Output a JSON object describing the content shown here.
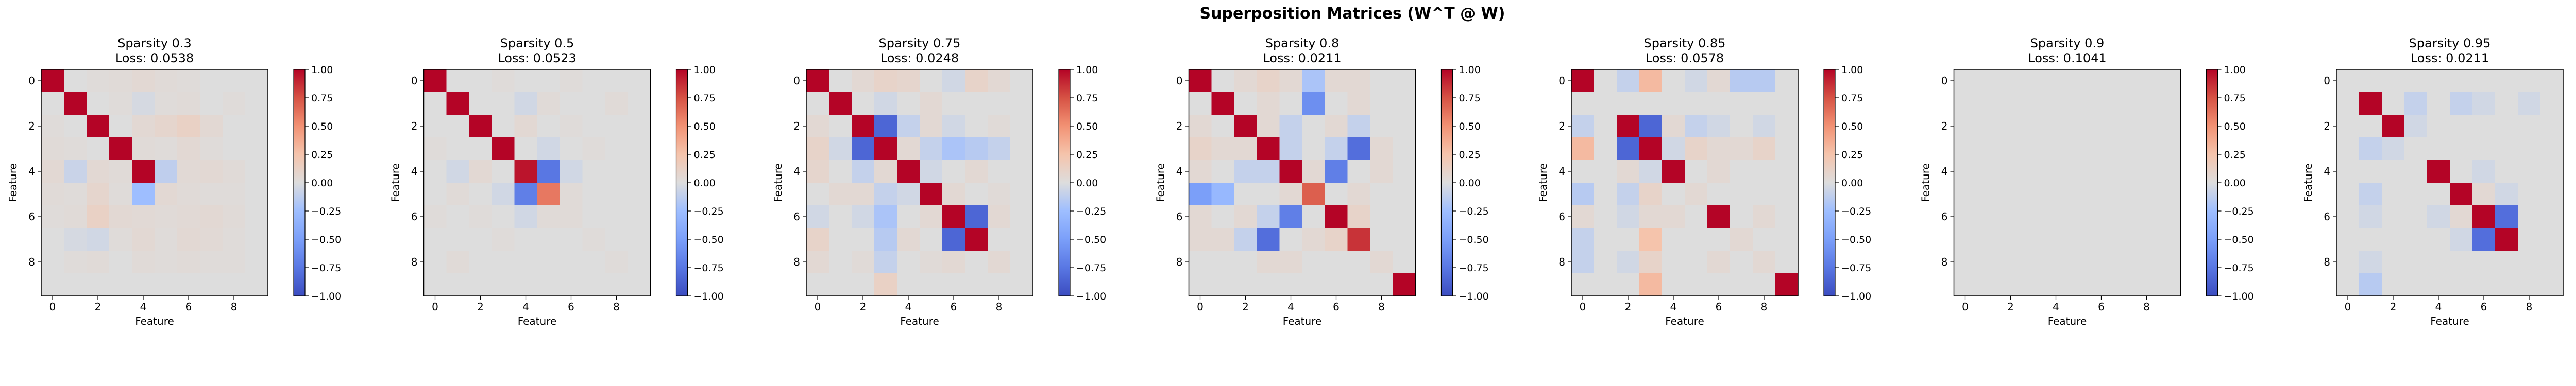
{
  "figure": {
    "title": "Superposition Matrices (W^T @ W)"
  },
  "colormap": {
    "name": "coolwarm",
    "vmin": -1.0,
    "vmax": 1.0,
    "low": "#3b4cc0",
    "mid": "#dddddd",
    "high": "#b40426"
  },
  "chart_data": [
    {
      "type": "heatmap",
      "title": "Sparsity 0.3",
      "subtitle": "Loss: 0.0538",
      "sparsity": 0.3,
      "loss": 0.0538,
      "xlabel": "Feature",
      "ylabel": "Feature",
      "xticks": [
        "0",
        "2",
        "4",
        "6",
        "8"
      ],
      "yticks": [
        "0",
        "2",
        "4",
        "6",
        "8"
      ],
      "colorbar_ticks": [
        "1.00",
        "0.75",
        "0.50",
        "0.25",
        "0.00",
        "−0.25",
        "−0.50",
        "−0.75",
        "−1.00"
      ],
      "matrix": [
        [
          1.0,
          0.0,
          0.02,
          0.03,
          0.05,
          0.03,
          0.02,
          0.0,
          0.0,
          0.0
        ],
        [
          0.0,
          1.0,
          0.0,
          0.02,
          -0.03,
          0.02,
          0.03,
          0.0,
          0.02,
          0.0
        ],
        [
          0.02,
          0.0,
          1.0,
          0.0,
          0.05,
          0.08,
          0.12,
          0.05,
          0.0,
          0.0
        ],
        [
          0.03,
          0.02,
          0.0,
          1.0,
          0.03,
          0.02,
          0.05,
          0.02,
          0.0,
          0.0
        ],
        [
          0.05,
          -0.08,
          0.05,
          0.03,
          1.0,
          -0.12,
          0.04,
          0.05,
          0.03,
          0.0
        ],
        [
          0.03,
          0.02,
          0.08,
          0.02,
          -0.25,
          0.05,
          0.03,
          0.02,
          0.02,
          0.0
        ],
        [
          0.02,
          0.03,
          0.12,
          0.05,
          0.04,
          0.03,
          0.04,
          0.05,
          0.03,
          0.0
        ],
        [
          0.0,
          -0.03,
          -0.05,
          0.02,
          0.05,
          0.02,
          0.05,
          0.04,
          0.02,
          0.0
        ],
        [
          0.0,
          0.02,
          0.03,
          0.0,
          0.03,
          0.02,
          0.03,
          0.02,
          0.02,
          0.0
        ],
        [
          0.0,
          0.0,
          0.0,
          0.0,
          0.0,
          0.0,
          0.0,
          0.0,
          0.0,
          0.0
        ]
      ]
    },
    {
      "type": "heatmap",
      "title": "Sparsity 0.5",
      "subtitle": "Loss: 0.0523",
      "sparsity": 0.5,
      "loss": 0.0523,
      "xlabel": "Feature",
      "ylabel": "Feature",
      "xticks": [
        "0",
        "2",
        "4",
        "6",
        "8"
      ],
      "yticks": [
        "0",
        "2",
        "4",
        "6",
        "8"
      ],
      "colorbar_ticks": [
        "1.00",
        "0.75",
        "0.50",
        "0.25",
        "0.00",
        "−0.25",
        "−0.50",
        "−0.75",
        "−1.00"
      ],
      "matrix": [
        [
          1.0,
          0.0,
          0.0,
          0.02,
          0.0,
          0.0,
          0.02,
          0.0,
          0.0,
          0.0
        ],
        [
          0.0,
          1.0,
          0.0,
          0.0,
          -0.05,
          0.03,
          0.0,
          0.0,
          0.03,
          0.0
        ],
        [
          0.0,
          0.0,
          1.0,
          0.0,
          0.05,
          0.0,
          0.02,
          0.0,
          0.0,
          0.0
        ],
        [
          0.02,
          0.0,
          0.0,
          1.0,
          0.0,
          -0.05,
          0.0,
          0.02,
          0.0,
          0.0
        ],
        [
          0.0,
          -0.05,
          0.05,
          0.0,
          0.95,
          -0.75,
          -0.05,
          0.0,
          0.0,
          0.0
        ],
        [
          0.0,
          0.03,
          0.0,
          -0.05,
          -0.7,
          0.6,
          0.03,
          0.0,
          0.0,
          0.0
        ],
        [
          0.02,
          0.0,
          0.02,
          0.0,
          -0.05,
          0.03,
          0.03,
          0.0,
          0.0,
          0.0
        ],
        [
          0.0,
          0.0,
          0.0,
          0.02,
          0.0,
          0.0,
          0.0,
          0.02,
          0.0,
          0.0
        ],
        [
          0.0,
          0.03,
          0.0,
          0.0,
          0.0,
          0.0,
          0.0,
          0.0,
          0.02,
          0.0
        ],
        [
          0.0,
          0.0,
          0.0,
          0.0,
          0.0,
          0.0,
          0.0,
          0.0,
          0.0,
          0.0
        ]
      ]
    },
    {
      "type": "heatmap",
      "title": "Sparsity 0.75",
      "subtitle": "Loss: 0.0248",
      "sparsity": 0.75,
      "loss": 0.0248,
      "xlabel": "Feature",
      "ylabel": "Feature",
      "xticks": [
        "0",
        "2",
        "4",
        "6",
        "8"
      ],
      "yticks": [
        "0",
        "2",
        "4",
        "6",
        "8"
      ],
      "colorbar_ticks": [
        "1.00",
        "0.75",
        "0.50",
        "0.25",
        "0.00",
        "−0.25",
        "−0.50",
        "−0.75",
        "−1.00"
      ],
      "matrix": [
        [
          1.0,
          0.0,
          0.05,
          0.1,
          0.08,
          0.0,
          -0.05,
          0.1,
          0.05,
          0.0
        ],
        [
          0.0,
          1.0,
          0.0,
          -0.05,
          0.0,
          0.05,
          0.0,
          0.0,
          0.0,
          0.0
        ],
        [
          0.05,
          0.0,
          1.0,
          -0.85,
          -0.1,
          0.05,
          -0.05,
          0.0,
          0.03,
          0.0
        ],
        [
          0.1,
          -0.05,
          -0.85,
          1.0,
          0.05,
          -0.1,
          -0.2,
          -0.15,
          -0.1,
          0.0
        ],
        [
          0.08,
          0.0,
          -0.1,
          0.05,
          1.0,
          -0.05,
          0.0,
          0.05,
          0.0,
          0.0
        ],
        [
          0.0,
          0.05,
          0.05,
          -0.1,
          -0.05,
          1.0,
          0.05,
          0.0,
          0.03,
          0.0
        ],
        [
          -0.05,
          0.0,
          -0.05,
          -0.2,
          0.0,
          0.05,
          1.0,
          -0.85,
          0.05,
          0.0
        ],
        [
          0.1,
          0.0,
          0.0,
          -0.15,
          0.05,
          0.0,
          -0.85,
          1.0,
          0.0,
          0.0
        ],
        [
          0.05,
          0.0,
          0.03,
          -0.1,
          0.0,
          0.03,
          0.05,
          0.0,
          0.05,
          0.0
        ],
        [
          0.0,
          0.0,
          0.0,
          0.12,
          0.0,
          0.0,
          0.0,
          0.0,
          0.0,
          0.0
        ]
      ]
    },
    {
      "type": "heatmap",
      "title": "Sparsity 0.8",
      "subtitle": "Loss: 0.0211",
      "sparsity": 0.8,
      "loss": 0.0211,
      "xlabel": "Feature",
      "ylabel": "Feature",
      "xticks": [
        "0",
        "2",
        "4",
        "6",
        "8"
      ],
      "yticks": [
        "0",
        "2",
        "4",
        "6",
        "8"
      ],
      "colorbar_ticks": [
        "1.00",
        "0.75",
        "0.50",
        "0.25",
        "0.00",
        "−0.25",
        "−0.50",
        "−0.75",
        "−1.00"
      ],
      "matrix": [
        [
          1.0,
          0.0,
          0.05,
          0.1,
          0.05,
          -0.2,
          0.05,
          0.05,
          0.0,
          0.0
        ],
        [
          0.0,
          1.0,
          0.0,
          0.05,
          0.0,
          -0.6,
          0.0,
          0.05,
          0.0,
          0.0
        ],
        [
          0.05,
          0.0,
          1.0,
          0.05,
          -0.1,
          0.0,
          0.05,
          -0.1,
          0.0,
          0.0
        ],
        [
          0.1,
          0.05,
          0.05,
          1.0,
          -0.1,
          0.0,
          -0.1,
          -0.8,
          0.05,
          0.0
        ],
        [
          0.05,
          0.0,
          -0.1,
          -0.1,
          1.0,
          0.05,
          -0.7,
          0.0,
          0.05,
          0.0
        ],
        [
          -0.5,
          -0.3,
          0.0,
          0.0,
          0.05,
          0.7,
          0.0,
          0.05,
          0.0,
          0.0
        ],
        [
          0.05,
          0.0,
          0.05,
          -0.1,
          -0.7,
          0.0,
          1.0,
          0.1,
          0.0,
          0.0
        ],
        [
          0.05,
          0.05,
          -0.1,
          -0.8,
          0.0,
          0.05,
          0.1,
          0.85,
          0.0,
          0.0
        ],
        [
          0.0,
          0.0,
          0.0,
          0.05,
          0.05,
          0.0,
          0.0,
          0.0,
          0.05,
          0.0
        ],
        [
          0.0,
          0.0,
          0.0,
          0.0,
          0.0,
          0.0,
          0.0,
          0.0,
          0.0,
          1.0
        ]
      ]
    },
    {
      "type": "heatmap",
      "title": "Sparsity 0.85",
      "subtitle": "Loss: 0.0578",
      "sparsity": 0.85,
      "loss": 0.0578,
      "xlabel": "Feature",
      "ylabel": "Feature",
      "xticks": [
        "0",
        "2",
        "4",
        "6",
        "8"
      ],
      "yticks": [
        "0",
        "2",
        "4",
        "6",
        "8"
      ],
      "colorbar_ticks": [
        "1.00",
        "0.75",
        "0.50",
        "0.25",
        "0.00",
        "−0.25",
        "−0.50",
        "−0.75",
        "−1.00"
      ],
      "matrix": [
        [
          1.0,
          0.0,
          -0.1,
          0.3,
          0.0,
          -0.05,
          0.05,
          -0.15,
          -0.15,
          0.0
        ],
        [
          0.0,
          0.0,
          0.0,
          0.0,
          0.0,
          0.0,
          0.0,
          0.0,
          0.0,
          0.0
        ],
        [
          -0.1,
          0.0,
          1.0,
          -0.85,
          0.05,
          -0.1,
          -0.05,
          0.0,
          -0.05,
          0.0
        ],
        [
          0.3,
          0.0,
          -0.85,
          1.0,
          -0.05,
          0.1,
          0.05,
          0.05,
          0.1,
          0.0
        ],
        [
          0.0,
          0.0,
          0.05,
          -0.05,
          1.0,
          0.0,
          0.05,
          0.0,
          0.0,
          0.0
        ],
        [
          -0.15,
          0.0,
          -0.1,
          0.1,
          0.0,
          0.05,
          0.0,
          0.0,
          0.0,
          0.0
        ],
        [
          0.05,
          0.0,
          -0.05,
          0.05,
          0.05,
          0.0,
          1.0,
          0.0,
          0.05,
          0.0
        ],
        [
          -0.1,
          0.0,
          0.0,
          0.25,
          0.0,
          0.0,
          0.0,
          0.05,
          0.0,
          0.0
        ],
        [
          -0.1,
          0.0,
          -0.05,
          0.1,
          0.0,
          0.0,
          0.05,
          0.0,
          0.05,
          0.0
        ],
        [
          0.0,
          0.0,
          0.0,
          0.3,
          0.0,
          0.0,
          0.0,
          0.0,
          0.0,
          1.0
        ]
      ]
    },
    {
      "type": "heatmap",
      "title": "Sparsity 0.9",
      "subtitle": "Loss: 0.1041",
      "sparsity": 0.9,
      "loss": 0.1041,
      "xlabel": "Feature",
      "ylabel": "Feature",
      "xticks": [
        "0",
        "2",
        "4",
        "6",
        "8"
      ],
      "yticks": [
        "0",
        "2",
        "4",
        "6",
        "8"
      ],
      "colorbar_ticks": [
        "1.00",
        "0.75",
        "0.50",
        "0.25",
        "0.00",
        "−0.25",
        "−0.50",
        "−0.75",
        "−1.00"
      ],
      "matrix": [
        [
          0.0,
          0.0,
          0.0,
          0.0,
          0.0,
          0.0,
          0.0,
          0.0,
          0.0,
          0.0
        ],
        [
          0.0,
          0.0,
          0.0,
          0.0,
          0.0,
          0.0,
          0.0,
          0.0,
          0.0,
          0.0
        ],
        [
          0.0,
          0.0,
          0.0,
          0.0,
          0.0,
          0.0,
          0.0,
          0.0,
          0.0,
          0.0
        ],
        [
          0.0,
          0.0,
          0.0,
          0.0,
          0.0,
          0.0,
          0.0,
          0.0,
          0.0,
          0.0
        ],
        [
          0.0,
          0.0,
          0.0,
          0.0,
          0.0,
          0.0,
          0.0,
          0.0,
          0.0,
          0.0
        ],
        [
          0.0,
          0.0,
          0.0,
          0.0,
          0.0,
          0.0,
          0.0,
          0.0,
          0.0,
          0.0
        ],
        [
          0.0,
          0.0,
          0.0,
          0.0,
          0.0,
          0.0,
          0.0,
          0.0,
          0.0,
          0.0
        ],
        [
          0.0,
          0.0,
          0.0,
          0.0,
          0.0,
          0.0,
          0.0,
          0.0,
          0.0,
          0.0
        ],
        [
          0.0,
          0.0,
          0.0,
          0.0,
          0.0,
          0.0,
          0.0,
          0.0,
          0.0,
          0.0
        ],
        [
          0.0,
          0.0,
          0.0,
          0.0,
          0.0,
          0.0,
          0.0,
          0.0,
          0.0,
          0.0
        ]
      ]
    },
    {
      "type": "heatmap",
      "title": "Sparsity 0.95",
      "subtitle": "Loss: 0.0211",
      "sparsity": 0.95,
      "loss": 0.0211,
      "xlabel": "Feature",
      "ylabel": "Feature",
      "xticks": [
        "0",
        "2",
        "4",
        "6",
        "8"
      ],
      "yticks": [
        "0",
        "2",
        "4",
        "6",
        "8"
      ],
      "colorbar_ticks": [
        "1.00",
        "0.75",
        "0.50",
        "0.25",
        "0.00",
        "−0.25",
        "−0.50",
        "−0.75",
        "−1.00"
      ],
      "matrix": [
        [
          0.0,
          0.0,
          0.0,
          0.0,
          0.0,
          0.0,
          0.0,
          0.0,
          0.0,
          0.0
        ],
        [
          0.0,
          1.0,
          0.0,
          -0.1,
          0.0,
          -0.1,
          -0.05,
          0.0,
          -0.05,
          0.0
        ],
        [
          0.0,
          0.0,
          1.0,
          -0.05,
          0.0,
          0.0,
          0.0,
          0.0,
          0.0,
          0.0
        ],
        [
          0.0,
          -0.1,
          -0.05,
          0.0,
          0.0,
          0.0,
          0.0,
          0.0,
          0.0,
          0.0
        ],
        [
          0.0,
          0.0,
          0.0,
          0.0,
          1.0,
          0.0,
          -0.05,
          0.0,
          0.0,
          0.0
        ],
        [
          0.0,
          -0.1,
          0.0,
          0.0,
          0.0,
          1.0,
          0.05,
          -0.05,
          0.0,
          0.0
        ],
        [
          0.0,
          -0.05,
          0.0,
          0.0,
          -0.05,
          0.05,
          1.0,
          -0.8,
          0.0,
          0.0
        ],
        [
          0.0,
          0.0,
          0.0,
          0.0,
          0.0,
          -0.05,
          -0.8,
          1.0,
          0.0,
          0.0
        ],
        [
          0.0,
          -0.05,
          0.0,
          0.0,
          0.0,
          0.0,
          0.0,
          0.0,
          0.0,
          0.0
        ],
        [
          0.0,
          -0.15,
          0.0,
          0.0,
          0.0,
          0.0,
          0.0,
          0.0,
          0.0,
          0.0
        ]
      ]
    }
  ]
}
